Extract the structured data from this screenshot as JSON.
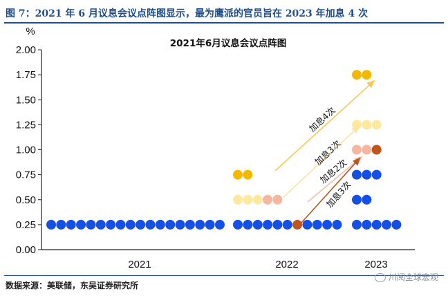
{
  "caption": "图 7：2021 年 6 月议息会议点阵图显示，最为鹰派的官员旨在 2023 年加息 4 次",
  "source": "数据来源：美联储，东吴证券研究所",
  "watermark": "川阅全球宏观",
  "colors": {
    "caption": "#1f4e8c",
    "blue": "#1450e6"
  },
  "chart_data": {
    "type": "scatter",
    "title": "2021年6月议息会议点阵图",
    "ylabel": "%",
    "ylim": [
      0,
      2
    ],
    "yticks": [
      "0.00",
      "0.25",
      "0.50",
      "0.75",
      "1.00",
      "1.25",
      "1.50",
      "1.75",
      "2.00"
    ],
    "categories": [
      "2021",
      "2022",
      "2023"
    ],
    "series": [
      {
        "category": "2021",
        "rows": [
          {
            "value": 0.25,
            "colors": [
              "#1450e6",
              "#1450e6",
              "#1450e6",
              "#1450e6",
              "#1450e6",
              "#1450e6",
              "#1450e6",
              "#1450e6",
              "#1450e6",
              "#1450e6",
              "#1450e6",
              "#1450e6",
              "#1450e6",
              "#1450e6",
              "#1450e6",
              "#1450e6",
              "#1450e6",
              "#1450e6"
            ]
          }
        ]
      },
      {
        "category": "2022",
        "rows": [
          {
            "value": 0.75,
            "colors": [
              "#f5b800",
              "#f5b800"
            ]
          },
          {
            "value": 0.5,
            "colors": [
              "#fde8a0",
              "#fde8a0",
              "#fde8a0",
              "#f5b7a0",
              "#f5b7a0"
            ]
          },
          {
            "value": 0.25,
            "colors": [
              "#1450e6",
              "#1450e6",
              "#1450e6",
              "#1450e6",
              "#1450e6",
              "#1450e6",
              "#c0561c",
              "#1450e6",
              "#1450e6",
              "#1450e6",
              "#1450e6"
            ]
          }
        ]
      },
      {
        "category": "2023",
        "rows": [
          {
            "value": 1.75,
            "colors": [
              "#f5b800",
              "#f5b800"
            ]
          },
          {
            "value": 1.25,
            "colors": [
              "#fde8a0",
              "#fde8a0",
              "#fde8a0"
            ]
          },
          {
            "value": 1.0,
            "colors": [
              "#f5b7a0",
              "#f5b7a0",
              "#c0561c"
            ]
          },
          {
            "value": 0.75,
            "colors": [
              "#1450e6",
              "#1450e6",
              "#1450e6"
            ]
          },
          {
            "value": 0.5,
            "colors": [
              "#1450e6",
              "#1450e6"
            ]
          },
          {
            "value": 0.25,
            "colors": [
              "#1450e6",
              "#1450e6",
              "#1450e6",
              "#1450e6",
              "#1450e6"
            ]
          }
        ]
      }
    ],
    "annotations": [
      {
        "text": "加息4次",
        "color": "#f5c850",
        "from": [
          "2022",
          0.75
        ],
        "to": [
          "2023",
          1.75
        ]
      },
      {
        "text": "加息3次",
        "color": "#fbe3a0",
        "from": [
          "2022",
          0.5
        ],
        "to": [
          "2023",
          1.25
        ]
      },
      {
        "text": "加息2次",
        "color": "#f5bca5",
        "from": [
          "2022",
          0.5
        ],
        "to": [
          "2023",
          1.0
        ]
      },
      {
        "text": "加息3次",
        "color": "#b8541e",
        "from": [
          "2022",
          0.25
        ],
        "to": [
          "2023",
          1.0
        ]
      }
    ]
  }
}
